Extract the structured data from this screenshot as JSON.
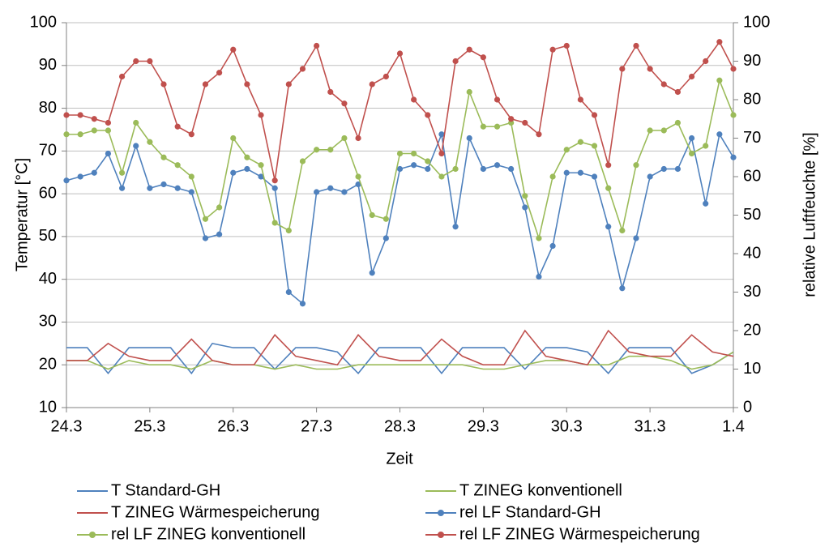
{
  "chart_data": {
    "type": "line",
    "x_axis_label": "Zeit",
    "y_axis_label": "Temperatur [°C]",
    "y2_axis_label": "relative Luftfeuchte [%]",
    "x_labels": [
      "24.3",
      "25.3",
      "26.3",
      "27.3",
      "28.3",
      "29.3",
      "30.3",
      "31.3",
      "1.4"
    ],
    "ylim": [
      10,
      100
    ],
    "yticks": [
      10,
      20,
      30,
      40,
      50,
      60,
      70,
      80,
      90,
      100
    ],
    "y2lim": [
      0,
      100
    ],
    "y2ticks": [
      0,
      10,
      20,
      30,
      40,
      50,
      60,
      70,
      80,
      90,
      100
    ],
    "grid": true,
    "legend": "bottom",
    "series": [
      {
        "name": "T Standard-GH",
        "color": "#4f81bd",
        "marker": "none",
        "values": [
          24,
          24,
          18,
          24,
          24,
          24,
          18,
          25,
          24,
          24,
          19,
          24,
          24,
          23,
          18,
          24,
          24,
          24,
          18,
          24,
          24,
          24,
          19,
          24,
          24,
          23,
          18,
          24,
          24,
          24,
          18,
          20,
          23
        ]
      },
      {
        "name": "T ZINEG konventionell",
        "color": "#9bbb59",
        "marker": "none",
        "values": [
          21,
          21,
          19,
          21,
          20,
          20,
          19,
          21,
          20,
          20,
          19,
          20,
          19,
          19,
          20,
          20,
          20,
          20,
          20,
          20,
          19,
          19,
          20,
          21,
          21,
          20,
          20,
          22,
          22,
          21,
          19,
          20,
          23
        ]
      },
      {
        "name": "T ZINEG Wärmespeicherung",
        "color": "#c0504d",
        "marker": "none",
        "values": [
          21,
          21,
          25,
          22,
          21,
          21,
          26,
          21,
          20,
          20,
          27,
          22,
          21,
          20,
          27,
          22,
          21,
          21,
          26,
          22,
          20,
          20,
          28,
          22,
          21,
          20,
          28,
          23,
          22,
          22,
          27,
          23,
          22
        ]
      },
      {
        "name": "rel LF Standard-GH",
        "color": "#4f81bd",
        "marker": "circle",
        "axis": "y2",
        "values": [
          59,
          60,
          61,
          66,
          57,
          68,
          57,
          58,
          57,
          56,
          44,
          45,
          61,
          62,
          60,
          57,
          30,
          27,
          56,
          57,
          56,
          58,
          35,
          44,
          62,
          63,
          62,
          71,
          47,
          70,
          62,
          63,
          62,
          52,
          34,
          42,
          61,
          61,
          60,
          47,
          31,
          44,
          60,
          62,
          62,
          70,
          53,
          71,
          65
        ]
      },
      {
        "name": "rel LF ZINEG konventionell",
        "color": "#9bbb59",
        "marker": "circle",
        "axis": "y2",
        "values": [
          71,
          71,
          72,
          72,
          61,
          74,
          69,
          65,
          63,
          60,
          49,
          52,
          70,
          65,
          63,
          48,
          46,
          64,
          67,
          67,
          70,
          60,
          50,
          49,
          66,
          66,
          64,
          60,
          62,
          82,
          73,
          73,
          74,
          55,
          44,
          60,
          67,
          69,
          68,
          57,
          46,
          63,
          72,
          72,
          74,
          66,
          68,
          85,
          76
        ]
      },
      {
        "name": "rel LF ZINEG Wärmespeicherung",
        "color": "#c0504d",
        "marker": "circle",
        "axis": "y2",
        "values": [
          76,
          76,
          75,
          74,
          86,
          90,
          90,
          84,
          73,
          71,
          84,
          87,
          93,
          84,
          76,
          59,
          84,
          88,
          94,
          82,
          79,
          70,
          84,
          86,
          92,
          80,
          76,
          66,
          90,
          93,
          91,
          80,
          75,
          74,
          71,
          93,
          94,
          80,
          76,
          63,
          88,
          94,
          88,
          84,
          82,
          86,
          90,
          95,
          88
        ]
      }
    ]
  }
}
